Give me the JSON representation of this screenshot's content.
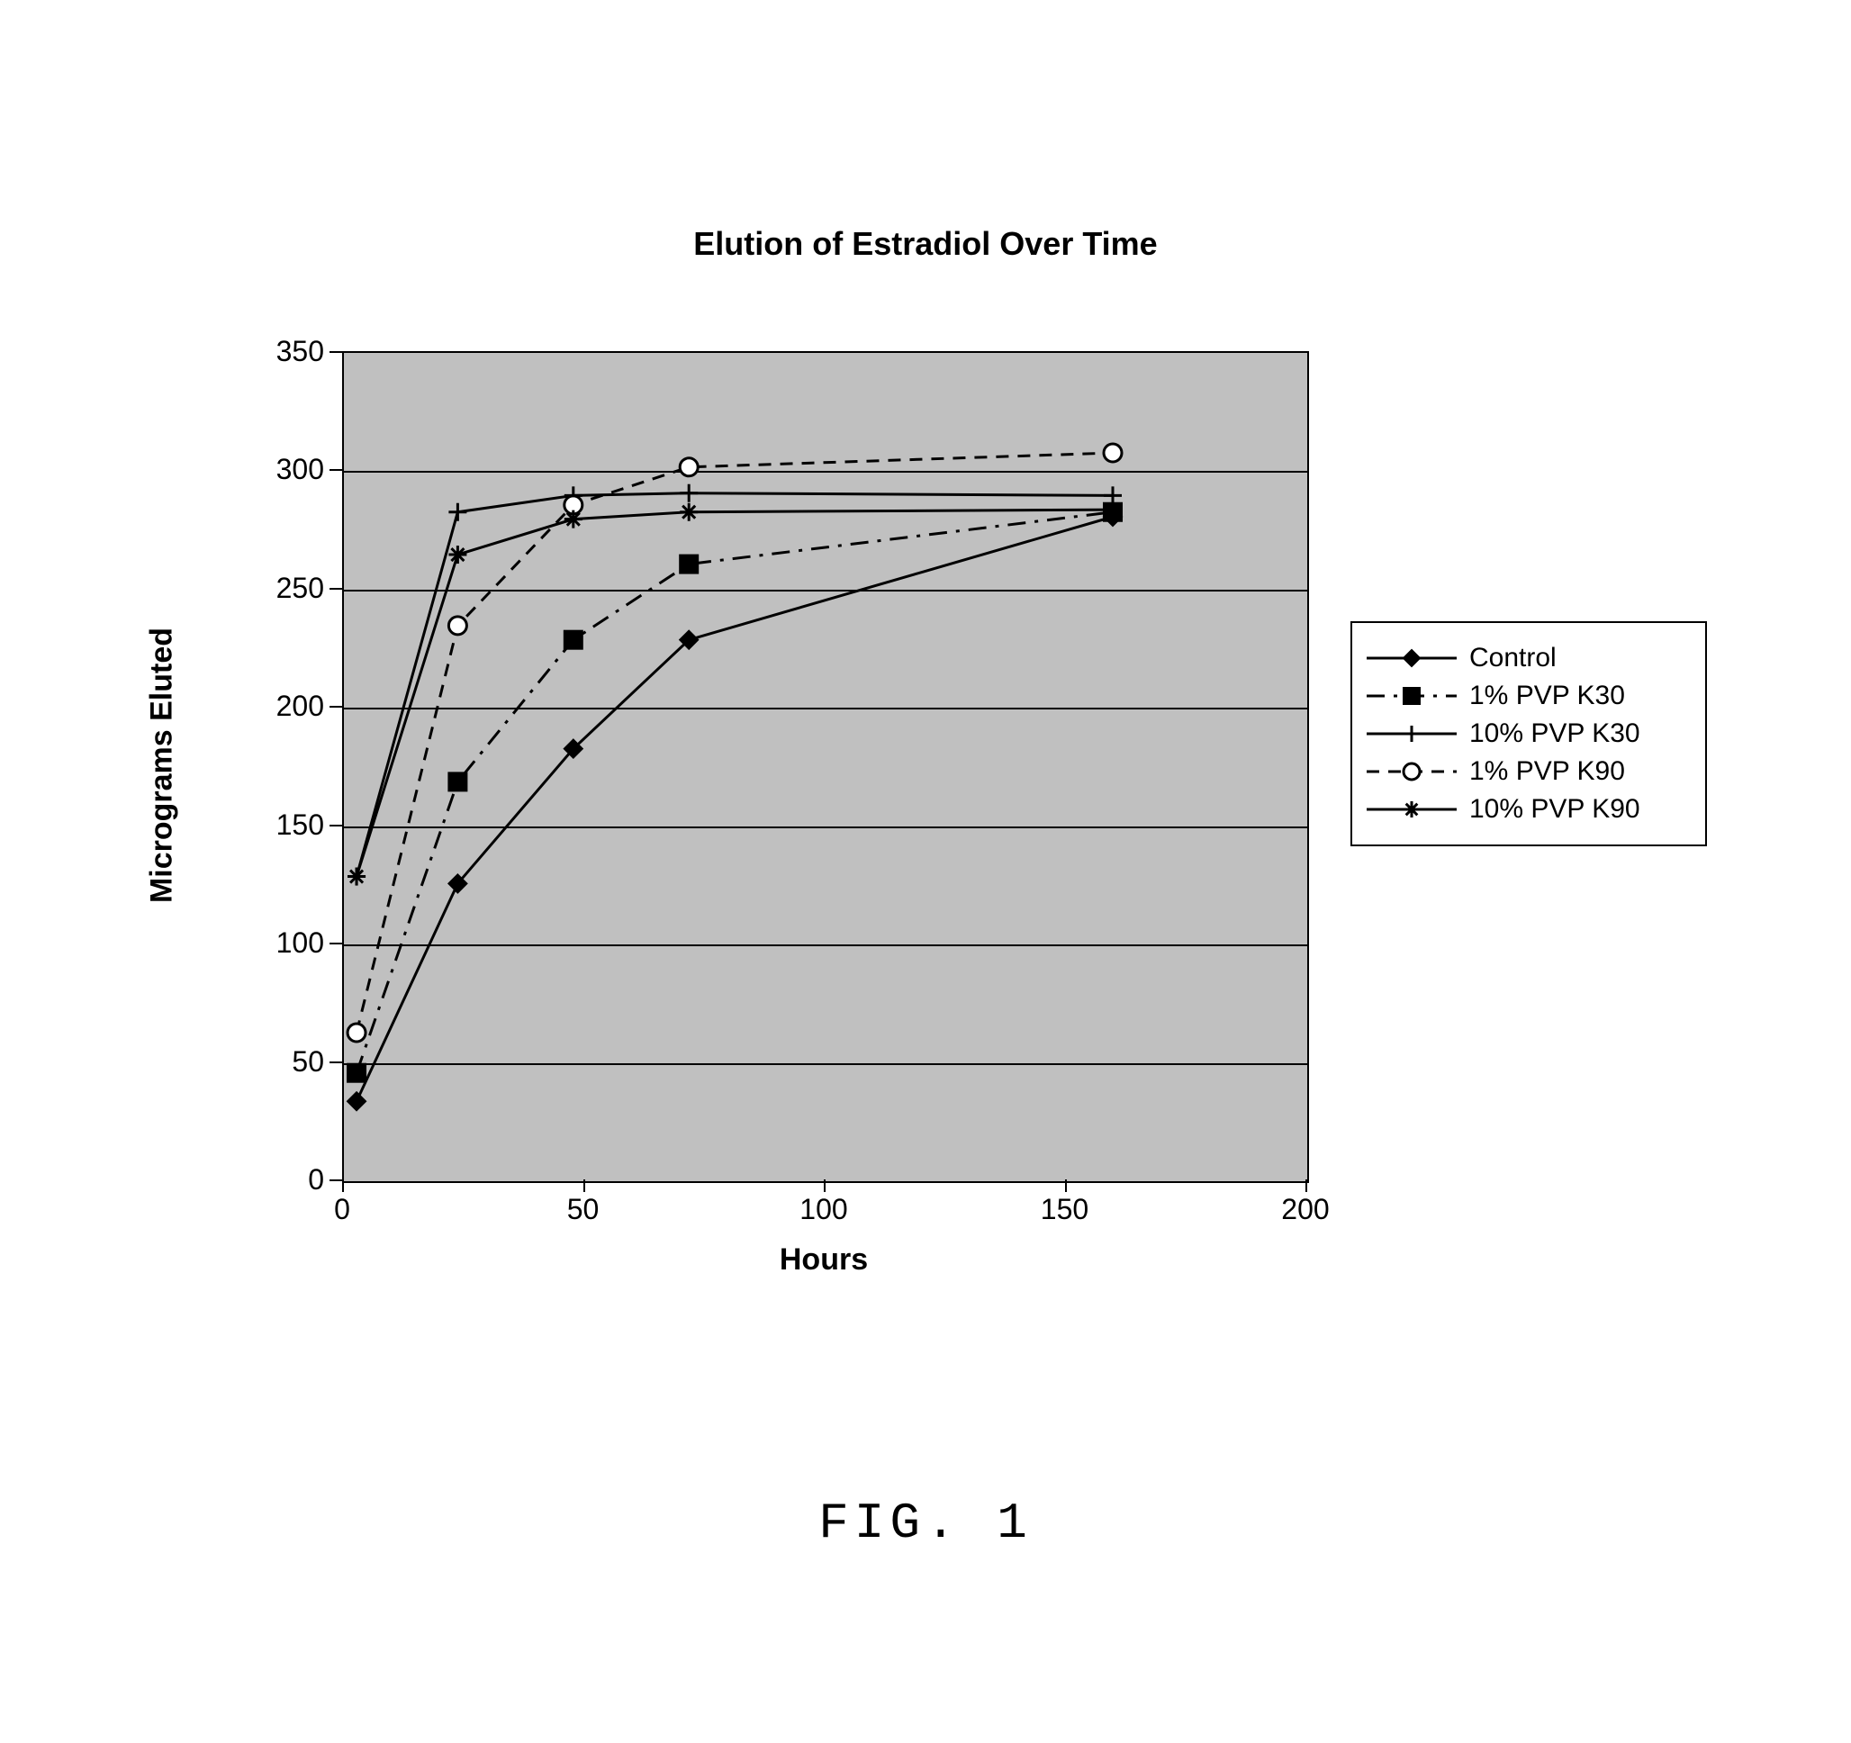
{
  "title": "Elution of Estradiol Over Time",
  "figure_label": "FIG. 1",
  "chart": {
    "type": "line",
    "background_color": "#c0c0c0",
    "border_color": "#000000",
    "grid_color": "#000000",
    "xlabel": "Hours",
    "ylabel": "Micrograms Eluted",
    "label_fontsize": 34,
    "tick_fontsize": 32,
    "title_fontsize": 36,
    "xlim": [
      0,
      200
    ],
    "ylim": [
      0,
      350
    ],
    "x_ticks": [
      0,
      50,
      100,
      150,
      200
    ],
    "y_ticks": [
      0,
      50,
      100,
      150,
      200,
      250,
      300,
      350
    ],
    "series": [
      {
        "name": "Control",
        "color": "#000000",
        "marker": "diamond-filled",
        "dash": "solid",
        "line_width": 3,
        "x": [
          3,
          24,
          48,
          72,
          160
        ],
        "y": [
          33,
          125,
          182,
          228,
          280
        ]
      },
      {
        "name": "1% PVP K30",
        "color": "#000000",
        "marker": "square-filled",
        "dash": "dash-dot",
        "line_width": 3,
        "x": [
          3,
          24,
          48,
          72,
          160
        ],
        "y": [
          45,
          168,
          228,
          260,
          282
        ]
      },
      {
        "name": "10% PVP K30",
        "color": "#000000",
        "marker": "plus",
        "dash": "solid",
        "line_width": 3,
        "x": [
          3,
          24,
          48,
          72,
          160
        ],
        "y": [
          128,
          282,
          289,
          290,
          289
        ]
      },
      {
        "name": "1% PVP K90",
        "color": "#000000",
        "marker": "circle-open",
        "dash": "dashed",
        "line_width": 3,
        "x": [
          3,
          24,
          48,
          72,
          160
        ],
        "y": [
          62,
          234,
          285,
          301,
          307
        ]
      },
      {
        "name": "10% PVP K90",
        "color": "#000000",
        "marker": "asterisk",
        "dash": "solid",
        "line_width": 3,
        "x": [
          3,
          24,
          48,
          72,
          160
        ],
        "y": [
          128,
          264,
          279,
          282,
          283
        ]
      }
    ],
    "legend_border_color": "#000000",
    "legend_bg": "#ffffff",
    "legend_fontsize": 30
  }
}
